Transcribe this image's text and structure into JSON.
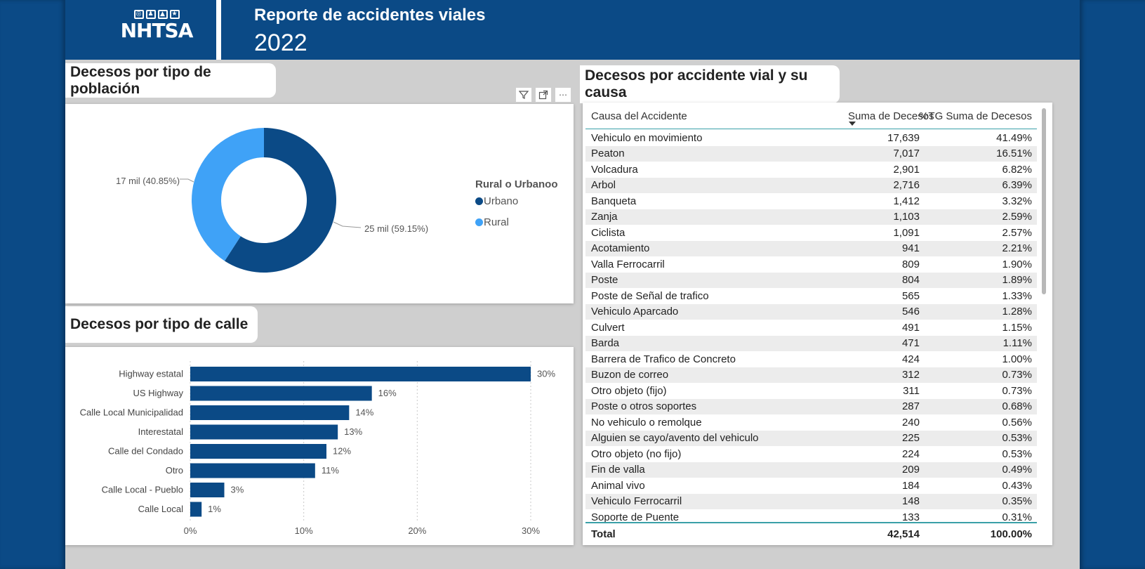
{
  "header": {
    "logo_text": "NHTSA",
    "title": "Reporte de accidentes viales",
    "year": "2022"
  },
  "donut": {
    "title": "Decesos por tipo de población",
    "legend_title": "Rural o Urbanoo",
    "tools": [
      "filter-icon",
      "focus-mode-icon",
      "more-options-icon"
    ],
    "labels": {
      "rural": "17 mil (40.85%)",
      "urbano": "25 mil (59.15%)"
    },
    "legend": [
      {
        "name": "Urbano",
        "color": "#0b4a86"
      },
      {
        "name": "Rural",
        "color": "#3fa2f7"
      }
    ]
  },
  "bar": {
    "title": "Decesos por tipo de calle"
  },
  "table": {
    "title": "Decesos por accidente vial y su causa",
    "headers": [
      "Causa del Accidente",
      "Suma de Decesos",
      "%TG Suma de Decesos"
    ],
    "rows": [
      [
        "Vehiculo en movimiento",
        "17,639",
        "41.49%"
      ],
      [
        "Peaton",
        "7,017",
        "16.51%"
      ],
      [
        "Volcadura",
        "2,901",
        "6.82%"
      ],
      [
        "Arbol",
        "2,716",
        "6.39%"
      ],
      [
        "Banqueta",
        "1,412",
        "3.32%"
      ],
      [
        "Zanja",
        "1,103",
        "2.59%"
      ],
      [
        "Ciclista",
        "1,091",
        "2.57%"
      ],
      [
        "Acotamiento",
        "941",
        "2.21%"
      ],
      [
        "Valla Ferrocarril",
        "809",
        "1.90%"
      ],
      [
        "Poste",
        "804",
        "1.89%"
      ],
      [
        "Poste de Señal de trafico",
        "565",
        "1.33%"
      ],
      [
        "Vehiculo Aparcado",
        "546",
        "1.28%"
      ],
      [
        "Culvert",
        "491",
        "1.15%"
      ],
      [
        "Barda",
        "471",
        "1.11%"
      ],
      [
        "Barrera de Trafico de Concreto",
        "424",
        "1.00%"
      ],
      [
        "Buzon de correo",
        "312",
        "0.73%"
      ],
      [
        "Otro objeto (fijo)",
        "311",
        "0.73%"
      ],
      [
        "Poste o otros soportes",
        "287",
        "0.68%"
      ],
      [
        "No vehiculo o remolque",
        "240",
        "0.56%"
      ],
      [
        "Alguien se cayo/avento del vehiculo",
        "225",
        "0.53%"
      ],
      [
        "Otro objeto (no fijo)",
        "224",
        "0.53%"
      ],
      [
        "Fin de valla",
        "209",
        "0.49%"
      ],
      [
        "Animal vivo",
        "184",
        "0.43%"
      ],
      [
        "Vehiculo Ferrocarril",
        "148",
        "0.35%"
      ],
      [
        "Soporte de Puente",
        "133",
        "0.31%"
      ]
    ],
    "total": [
      "Total",
      "42,514",
      "100.00%"
    ]
  },
  "chart_data": [
    {
      "type": "pie",
      "title": "Decesos por tipo de población",
      "legend_title": "Rural o Urbanoo",
      "categories": [
        "Urbano",
        "Rural"
      ],
      "values": [
        59.15,
        40.85
      ],
      "data_labels": [
        "25 mil (59.15%)",
        "17 mil (40.85%)"
      ],
      "colors": [
        "#0b4a86",
        "#3fa2f7"
      ],
      "legend": "right"
    },
    {
      "type": "bar",
      "orientation": "horizontal",
      "title": "Decesos por tipo de calle",
      "categories": [
        "Highway estatal",
        "US Highway",
        "Calle Local Municipalidad",
        "Interestatal",
        "Calle del Condado",
        "Otro",
        "Calle Local - Pueblo",
        "Calle Local"
      ],
      "values": [
        30,
        16,
        14,
        13,
        12,
        11,
        3,
        1
      ],
      "data_labels": [
        "30%",
        "16%",
        "14%",
        "13%",
        "12%",
        "11%",
        "3%",
        "1%"
      ],
      "xticks": [
        "0%",
        "10%",
        "20%",
        "30%"
      ],
      "xlim": [
        0,
        30
      ],
      "grid": true,
      "color": "#0b4a86"
    }
  ]
}
